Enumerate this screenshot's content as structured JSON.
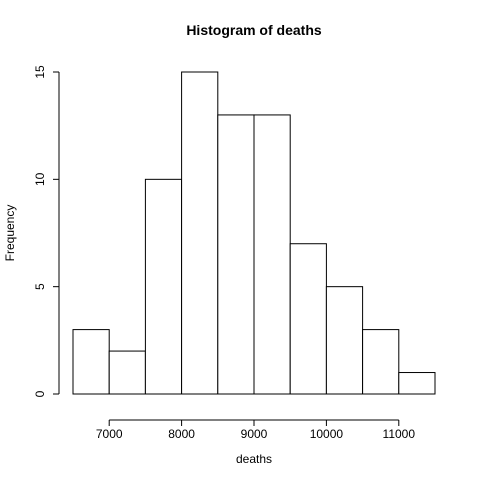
{
  "chart_data": {
    "type": "bar",
    "title": "Histogram of deaths",
    "xlabel": "deaths",
    "ylabel": "Frequency",
    "bins": [
      {
        "start": 6500,
        "end": 7000,
        "count": 3
      },
      {
        "start": 7000,
        "end": 7500,
        "count": 2
      },
      {
        "start": 7500,
        "end": 8000,
        "count": 10
      },
      {
        "start": 8000,
        "end": 8500,
        "count": 15
      },
      {
        "start": 8500,
        "end": 9000,
        "count": 13
      },
      {
        "start": 9000,
        "end": 9500,
        "count": 13
      },
      {
        "start": 9500,
        "end": 10000,
        "count": 7
      },
      {
        "start": 10000,
        "end": 10500,
        "count": 5
      },
      {
        "start": 10500,
        "end": 11000,
        "count": 3
      },
      {
        "start": 11000,
        "end": 11500,
        "count": 1
      }
    ],
    "xlim": [
      6500,
      11500
    ],
    "ylim": [
      0,
      15
    ],
    "x_ticks": [
      "7000",
      "8000",
      "9000",
      "10000",
      "11000"
    ],
    "y_ticks": [
      "0",
      "5",
      "10",
      "15"
    ],
    "grid": false
  }
}
